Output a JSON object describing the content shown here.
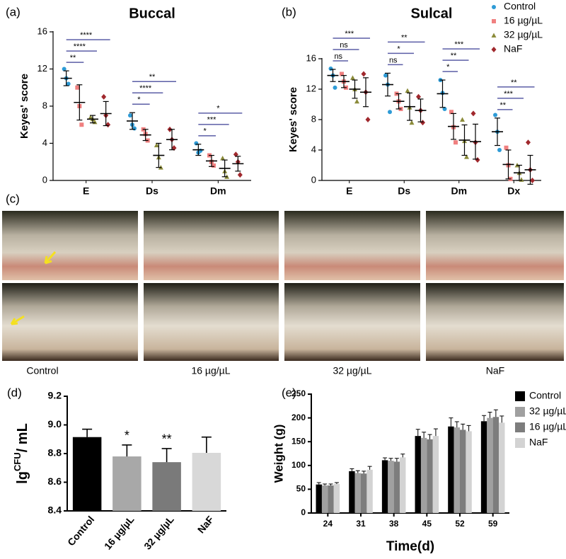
{
  "chart_data": [
    {
      "type": "dot",
      "panel_label": "(a)",
      "title": "Buccal",
      "y_label": "Keyes' score",
      "categories": [
        "E",
        "Ds",
        "Dm"
      ],
      "ylim": [
        0,
        16
      ],
      "yticks": [
        0,
        4,
        8,
        12,
        16
      ],
      "series": [
        {
          "color": "#2e9bd6",
          "marker": "circle",
          "means": [
            11,
            6.4,
            3.3
          ],
          "sd": [
            0.8,
            0.9,
            0.6
          ],
          "points": [
            [
              12,
              11,
              10.4
            ],
            [
              7,
              6,
              5.6
            ],
            [
              4,
              3,
              3.2
            ]
          ]
        },
        {
          "color": "#f08080",
          "marker": "square",
          "means": [
            8.4,
            4.9,
            2.1
          ],
          "sd": [
            1.9,
            0.6,
            0.6
          ],
          "points": [
            [
              10,
              8,
              6
            ],
            [
              5.5,
              5,
              4.3
            ],
            [
              2.7,
              2,
              1.6
            ]
          ]
        },
        {
          "color": "#8b8b3a",
          "marker": "triangle",
          "means": [
            6.6,
            2.7,
            1.3
          ],
          "sd": [
            0.4,
            1.3,
            0.9
          ],
          "points": [
            [
              6.8,
              6.6,
              6.3
            ],
            [
              3.8,
              2.5,
              1.4
            ],
            [
              2.4,
              1,
              0.4
            ]
          ]
        },
        {
          "color": "#a0282d",
          "marker": "diamond",
          "means": [
            7.2,
            4.4,
            1.8
          ],
          "sd": [
            1.3,
            1.1,
            0.8
          ],
          "points": [
            [
              9,
              7,
              6
            ],
            [
              5.5,
              4.4,
              3.5
            ],
            [
              2.8,
              2,
              0.6
            ]
          ]
        }
      ],
      "significance": [
        [
          "**",
          "****",
          "****"
        ],
        [
          "*",
          "****",
          "**"
        ],
        [
          "*",
          "***",
          "*"
        ]
      ]
    },
    {
      "type": "dot",
      "panel_label": "(b)",
      "title": "Sulcal",
      "y_label": "Keyes' score",
      "categories": [
        "E",
        "Ds",
        "Dm",
        "Dx"
      ],
      "ylim": [
        0,
        16
      ],
      "yticks": [
        0,
        4,
        8,
        12,
        16
      ],
      "series": [
        {
          "name": "Control",
          "color": "#2e9bd6",
          "marker": "circle",
          "means": [
            13.8,
            12.6,
            11.4,
            6.4
          ],
          "sd": [
            0.8,
            1.5,
            1.8,
            1.8
          ],
          "points": [
            [
              14.7,
              13.8,
              12.2
            ],
            [
              13.8,
              12.6,
              9
            ],
            [
              13.2,
              11.5,
              9.4
            ],
            [
              8.6,
              6.4,
              4
            ]
          ]
        },
        {
          "name": "16 µg/µL",
          "color": "#f08080",
          "marker": "square",
          "means": [
            13,
            10.4,
            7.1,
            2.1
          ],
          "sd": [
            0.8,
            1,
            1.7,
            1.9
          ],
          "points": [
            [
              14,
              13,
              12.2
            ],
            [
              11.4,
              10.4,
              9.4
            ],
            [
              9,
              7,
              5
            ],
            [
              4.3,
              2,
              0.2
            ]
          ]
        },
        {
          "name": "32 µg/µL",
          "color": "#8b8b3a",
          "marker": "triangle",
          "means": [
            12,
            9.7,
            5.3,
            1
          ],
          "sd": [
            1.2,
            1.8,
            2,
            1
          ],
          "points": [
            [
              13.5,
              12,
              10.4
            ],
            [
              11.8,
              9.6,
              7.6
            ],
            [
              8,
              5.2,
              3.1
            ],
            [
              2,
              1,
              0.1
            ]
          ]
        },
        {
          "name": "NaF",
          "color": "#a0282d",
          "marker": "diamond",
          "means": [
            11.6,
            9.2,
            5.1,
            1.4
          ],
          "sd": [
            1.9,
            1.5,
            2.3,
            1.9
          ],
          "points": [
            [
              14,
              11.6,
              8
            ],
            [
              11,
              9.2,
              7.6
            ],
            [
              8.8,
              5,
              2.7
            ],
            [
              5,
              1.4,
              0
            ]
          ]
        }
      ],
      "significance": [
        [
          "ns",
          "ns",
          "***"
        ],
        [
          "ns",
          "*",
          "**"
        ],
        [
          "*",
          "**",
          "***"
        ],
        [
          "**",
          "***",
          "**"
        ]
      ]
    },
    {
      "type": "bar",
      "panel_label": "(d)",
      "y_label": {
        "base": "lg",
        "superscript": "CFU",
        "rest": "/ mL"
      },
      "categories": [
        "Control",
        "16 µg/µL",
        "32 µg/µL",
        "NaF"
      ],
      "values": [
        8.915,
        8.78,
        8.74,
        8.805
      ],
      "errors": [
        0.055,
        0.08,
        0.095,
        0.11
      ],
      "colors": [
        "#000000",
        "#a8a8a8",
        "#7a7a7a",
        "#d8d8d8"
      ],
      "annotations": [
        null,
        "*",
        "**",
        null
      ],
      "ylim": [
        8.4,
        9.2
      ],
      "yticks": [
        8.4,
        8.6,
        8.8,
        {
          "value": 9,
          "label": "9.0"
        },
        9.2
      ]
    },
    {
      "type": "grouped_bar",
      "panel_label": "(e)",
      "y_label": "Weight (g)",
      "x_label": "Time(d)",
      "categories": [
        "24",
        "31",
        "38",
        "45",
        "52",
        "59"
      ],
      "series": [
        {
          "name": "Control",
          "color": "#000000",
          "values": [
            60,
            88,
            111,
            162,
            182,
            193
          ],
          "errors": [
            4,
            5,
            5,
            14,
            18,
            12
          ]
        },
        {
          "name": "32 µg/µL",
          "color": "#a0a0a0",
          "values": [
            58,
            84,
            110,
            158,
            180,
            200
          ],
          "errors": [
            3,
            5,
            5,
            12,
            12,
            12
          ]
        },
        {
          "name": "16 µg/µL",
          "color": "#7d7d7d",
          "values": [
            58,
            83,
            108,
            155,
            175,
            202
          ],
          "errors": [
            3,
            5,
            7,
            10,
            12,
            15
          ]
        },
        {
          "name": "NaF",
          "color": "#d3d3d3",
          "values": [
            61,
            91,
            117,
            162,
            172,
            190
          ],
          "errors": [
            3,
            7,
            7,
            15,
            12,
            14
          ]
        }
      ],
      "ylim": [
        0,
        250
      ],
      "yticks": [
        0,
        50,
        100,
        150,
        200,
        250
      ]
    }
  ],
  "photos": {
    "label": "(c)",
    "captions": [
      "Control",
      "16 µg/µL",
      "32 µg/µL",
      "NaF"
    ]
  }
}
